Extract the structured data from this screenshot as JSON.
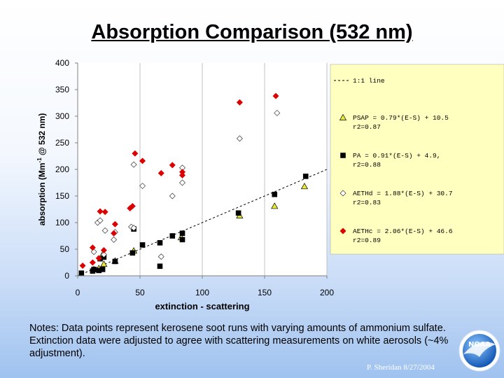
{
  "slide": {
    "title": "Absorption Comparison (532 nm)",
    "notes": "Notes:  Data points represent kerosene soot runs with varying amounts of ammonium sulfate.  Extinction data were adjusted to agree with scattering measurements on white aerosols (~4% adjustment).",
    "credit": "P. Sheridan  8/27/2004",
    "logo_text": "NOAA"
  },
  "chart_data": {
    "type": "scatter",
    "xlabel": "extinction - scattering",
    "ylabel_main": "absorption (Mm",
    "ylabel_sup": "-1",
    "ylabel_tail": " @ 532 nm)",
    "xlim": [
      0,
      200
    ],
    "ylim": [
      0,
      400
    ],
    "xticks": [
      0,
      50,
      100,
      150,
      200
    ],
    "yticks": [
      0,
      50,
      100,
      150,
      200,
      250,
      300,
      350,
      400
    ],
    "grid": "vertical",
    "legend_position": "right",
    "reference_line": {
      "label": "1:1 line",
      "slope": 1,
      "intercept": 0,
      "x_range": [
        0,
        200
      ]
    },
    "series": [
      {
        "name": "PSAP",
        "legend_eq": "PSAP  = 0.79*(E-S) + 10.5",
        "legend_r2": "r2=0.87",
        "marker": "triangle",
        "color": "#e8e838",
        "x": [
          13,
          17,
          21,
          30,
          45,
          83,
          130,
          158,
          182,
          20
        ],
        "y": [
          12,
          14,
          22,
          28,
          47,
          72,
          113,
          131,
          168,
          40
        ]
      },
      {
        "name": "PA",
        "legend_eq": "PA    = 0.91*(E-S) + 4.9,",
        "legend_r2": "r2=0.88",
        "marker": "square",
        "color": "#000000",
        "x": [
          3,
          12,
          13,
          17,
          18,
          20,
          21,
          30,
          44,
          45,
          52,
          66,
          66,
          76,
          84,
          84,
          129,
          158,
          183
        ],
        "y": [
          5,
          9,
          12,
          10,
          32,
          12,
          35,
          27,
          43,
          88,
          58,
          18,
          62,
          75,
          68,
          80,
          118,
          153,
          187
        ]
      },
      {
        "name": "AETHd",
        "legend_eq": "AETHd = 1.88*(E-S) + 30.7",
        "legend_r2": "r2=0.83",
        "marker": "diamond",
        "color": "#ffffff",
        "x": [
          13,
          16,
          18,
          21,
          22,
          29,
          30,
          43,
          45,
          45,
          52,
          67,
          76,
          84,
          84,
          130,
          160
        ],
        "y": [
          45,
          100,
          104,
          40,
          85,
          68,
          82,
          92,
          90,
          209,
          169,
          36,
          150,
          175,
          203,
          258,
          306
        ]
      },
      {
        "name": "AETHc",
        "legend_eq": "AETHc = 2.06*(E-S) + 46.6",
        "legend_r2": "r2=0.89",
        "marker": "diamond",
        "color": "#dd0000",
        "x": [
          4,
          12,
          12,
          17,
          18,
          21,
          22,
          29,
          30,
          42,
          44,
          46,
          52,
          67,
          76,
          84,
          84,
          130,
          159
        ],
        "y": [
          19,
          25,
          53,
          33,
          121,
          48,
          120,
          80,
          97,
          127,
          131,
          230,
          216,
          193,
          208,
          189,
          195,
          326,
          338
        ]
      }
    ]
  }
}
